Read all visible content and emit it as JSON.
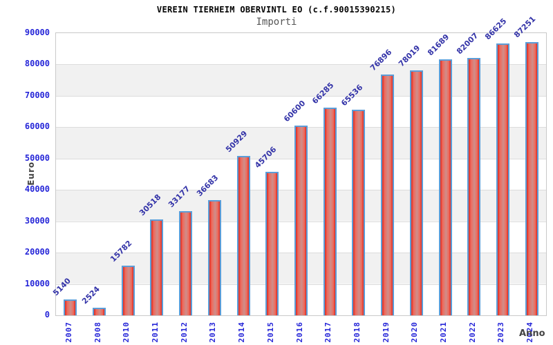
{
  "header": {
    "title": "VEREIN TIERHEIM OBERVINTL EO (c.f.90015390215)",
    "subtitle": "Importi"
  },
  "chart_data": {
    "type": "bar",
    "title": "VEREIN TIERHEIM OBERVINTL EO (c.f.90015390215)",
    "subtitle": "Importi",
    "xlabel": "Anno",
    "ylabel": "Euro",
    "categories": [
      "2007",
      "2008",
      "2010",
      "2011",
      "2012",
      "2013",
      "2014",
      "2015",
      "2016",
      "2017",
      "2018",
      "2019",
      "2020",
      "2021",
      "2022",
      "2023",
      "2024"
    ],
    "values": [
      5140,
      2524,
      15782,
      30518,
      33177,
      36683,
      50929,
      45706,
      60600,
      66285,
      65536,
      76896,
      78019,
      81689,
      82007,
      86625,
      87251
    ],
    "ylim": [
      0,
      90000
    ],
    "yticks": [
      0,
      10000,
      20000,
      30000,
      40000,
      50000,
      60000,
      70000,
      80000,
      90000
    ],
    "grid": true,
    "band_colors": [
      "#ffffff",
      "#f1f1f1"
    ],
    "legend": null,
    "colors": {
      "bar_edge": "#dc2a20",
      "bar_light": "#ef6a5c",
      "bar_mid": "#cf8e8a",
      "bar_border": "#5b9dd8",
      "axis_tick_text": "#2525d8",
      "value_label_text": "#3333a8",
      "axis_title_text": "#444444",
      "title_text": "#000000",
      "subtitle_text": "#555555"
    }
  }
}
